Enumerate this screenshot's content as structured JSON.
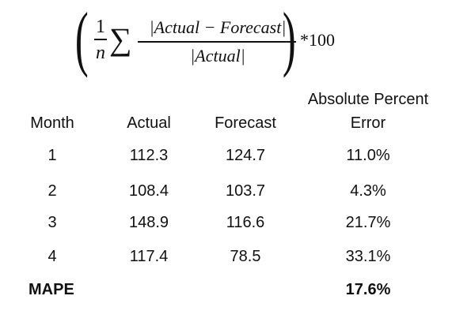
{
  "formula": {
    "one": "1",
    "n": "n",
    "sigma": "∑",
    "numerator": "|Actual − Forecast|",
    "denominator": "|Actual|",
    "multiplier": "*100"
  },
  "table": {
    "headers": {
      "month": "Month",
      "actual": "Actual",
      "forecast": "Forecast",
      "error_line1": "Absolute Percent",
      "error_line2": "Error"
    },
    "rows": [
      {
        "month": "1",
        "actual": "112.3",
        "forecast": "124.7",
        "error": "11.0%"
      },
      {
        "month": "2",
        "actual": "108.4",
        "forecast": "103.7",
        "error": "4.3%"
      },
      {
        "month": "3",
        "actual": "148.9",
        "forecast": "116.6",
        "error": "21.7%"
      },
      {
        "month": "4",
        "actual": "117.4",
        "forecast": "78.5",
        "error": "33.1%"
      }
    ],
    "summary": {
      "label": "MAPE",
      "value": "17.6%"
    }
  }
}
